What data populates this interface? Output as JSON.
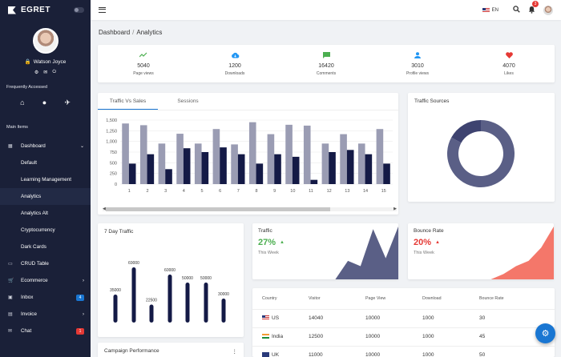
{
  "app": {
    "brand": "EGRET"
  },
  "sidebar": {
    "user_name": "Watson Joyce",
    "frequently_accessed_label": "Frequently Accessed",
    "main_items_label": "Main Items",
    "items": [
      {
        "label": "Dashboard",
        "icon": "dashboard-icon",
        "chevron": "⌄"
      },
      {
        "label": "Default"
      },
      {
        "label": "Learning Management"
      },
      {
        "label": "Analytics"
      },
      {
        "label": "Analytics Alt"
      },
      {
        "label": "Cryptocurrency"
      },
      {
        "label": "Dark Cards"
      },
      {
        "label": "CRUD Table",
        "icon": "table-icon"
      },
      {
        "label": "Ecommerce",
        "icon": "cart-icon",
        "chevron": "›"
      },
      {
        "label": "Inbox",
        "icon": "inbox-icon",
        "badge": "4",
        "badge_color": "#1976d2"
      },
      {
        "label": "Invoice",
        "icon": "invoice-icon",
        "chevron": "›"
      },
      {
        "label": "Chat",
        "icon": "chat-icon",
        "badge": "1",
        "badge_color": "#e53935"
      }
    ]
  },
  "topbar": {
    "language": "EN",
    "notification_count": "3"
  },
  "breadcrumb": {
    "root": "Dashboard",
    "separator": "/",
    "current": "Analytics"
  },
  "stats": [
    {
      "value": "5040",
      "label": "Page views",
      "icon": "trending-up-icon",
      "color": "#4caf50"
    },
    {
      "value": "1200",
      "label": "Downloads",
      "icon": "cloud-download-icon",
      "color": "#2196f3"
    },
    {
      "value": "16420",
      "label": "Comments",
      "icon": "comment-icon",
      "color": "#4caf50"
    },
    {
      "value": "3010",
      "label": "Profile views",
      "icon": "person-icon",
      "color": "#2196f3"
    },
    {
      "value": "4070",
      "label": "Likes",
      "icon": "heart-icon",
      "color": "#e53935"
    }
  ],
  "traffic": {
    "tabs": [
      "Traffic Vs Sales",
      "Sessions"
    ]
  },
  "sources": {
    "title": "Traffic Sources"
  },
  "seven_day": {
    "title": "7 Day Traffic"
  },
  "traffic_mini": {
    "title": "Traffic",
    "value": "27%",
    "sub": "This Week",
    "color": "#4caf50"
  },
  "bounce_mini": {
    "title": "Bounce Rate",
    "value": "20%",
    "sub": "This Week",
    "color": "#e53935"
  },
  "table": {
    "headers": [
      "Country",
      "Visitor",
      "Page View",
      "Download",
      "Bounce Rate"
    ],
    "rows": [
      {
        "country": "US",
        "visitor": "14040",
        "page_view": "10000",
        "download": "1000",
        "bounce": "30"
      },
      {
        "country": "India",
        "visitor": "12500",
        "page_view": "10000",
        "download": "1000",
        "bounce": "45"
      },
      {
        "country": "UK",
        "visitor": "11000",
        "page_view": "10000",
        "download": "1000",
        "bounce": "50"
      }
    ]
  },
  "campaign": {
    "title": "Campaign Performance"
  },
  "chart_data": [
    {
      "type": "bar",
      "categories": [
        "1",
        "2",
        "3",
        "4",
        "5",
        "6",
        "7",
        "8",
        "9",
        "10",
        "11",
        "12",
        "13",
        "14",
        "15"
      ],
      "series": [
        {
          "color": "#9a9cb3",
          "values": [
            1420,
            1380,
            950,
            1180,
            950,
            1290,
            930,
            1450,
            1170,
            1390,
            1370,
            950,
            1170,
            950,
            1290
          ]
        },
        {
          "color": "#141a46",
          "values": [
            480,
            700,
            350,
            840,
            750,
            860,
            700,
            480,
            700,
            640,
            100,
            750,
            800,
            700,
            480
          ]
        }
      ],
      "yticks": [
        "0",
        "250",
        "500",
        "750",
        "1,000",
        "1,250",
        "1,500"
      ],
      "ylim": [
        0,
        1500
      ],
      "grid": true
    },
    {
      "type": "pie",
      "donut": true,
      "values": [
        83,
        17
      ],
      "colors": [
        "#5a5f86",
        "#3e4370"
      ]
    },
    {
      "type": "bar",
      "values": [
        35000,
        69000,
        22500,
        60000,
        50000,
        50000,
        30000
      ],
      "data_labels": [
        "35000",
        "69000",
        "22500",
        "60000",
        "50000",
        "50000",
        "30000"
      ],
      "color": "#141a46",
      "ylim": [
        0,
        80000
      ]
    },
    {
      "type": "area",
      "values": [
        0,
        0,
        0,
        35,
        25,
        95,
        40,
        100
      ],
      "color": "#5a5f86"
    },
    {
      "type": "area",
      "values": [
        0,
        0,
        0,
        10,
        25,
        35,
        60,
        100
      ],
      "color": "#f4776a"
    }
  ]
}
